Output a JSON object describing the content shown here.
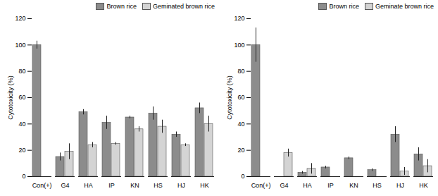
{
  "chart_data": [
    {
      "type": "bar",
      "y_label": "Cytotoxicity (%)",
      "categories": [
        "Con(+)",
        "G4",
        "HA",
        "IP",
        "KN",
        "HS",
        "HJ",
        "HK"
      ],
      "series": [
        {
          "name": "Brown rice",
          "color": "#8c8c8c",
          "values": [
            100,
            15,
            49,
            41,
            45,
            48,
            32,
            52
          ],
          "errors": [
            3,
            3,
            2,
            5,
            1,
            5,
            2,
            4
          ]
        },
        {
          "name": "Geminated brown rice",
          "color": "#d4d4d4",
          "values": [
            null,
            19,
            24,
            25,
            36,
            38,
            24,
            40
          ],
          "errors": [
            null,
            6,
            2,
            1,
            2,
            5,
            1,
            6
          ]
        }
      ],
      "ylim": [
        0,
        120
      ],
      "yticks": [
        0,
        20,
        40,
        60,
        80,
        100,
        120
      ],
      "legend": "top"
    },
    {
      "type": "bar",
      "y_label": "Cytotoxicity (%)",
      "categories": [
        "Con(+)",
        "G4",
        "HA",
        "IP",
        "KN",
        "HS",
        "HJ",
        "HK"
      ],
      "series": [
        {
          "name": "Brown rice",
          "color": "#8c8c8c",
          "values": [
            100,
            null,
            3,
            7,
            14,
            5,
            32,
            17
          ],
          "errors": [
            13,
            null,
            1,
            1,
            1,
            1,
            6,
            5
          ]
        },
        {
          "name": "Geminate brown rice",
          "color": "#d4d4d4",
          "values": [
            null,
            18,
            6,
            null,
            null,
            null,
            4,
            8
          ],
          "errors": [
            null,
            3,
            4,
            null,
            null,
            null,
            3,
            5
          ]
        }
      ],
      "ylim": [
        0,
        120
      ],
      "yticks": [
        0,
        20,
        40,
        60,
        80,
        100,
        120
      ],
      "legend": "top"
    }
  ]
}
